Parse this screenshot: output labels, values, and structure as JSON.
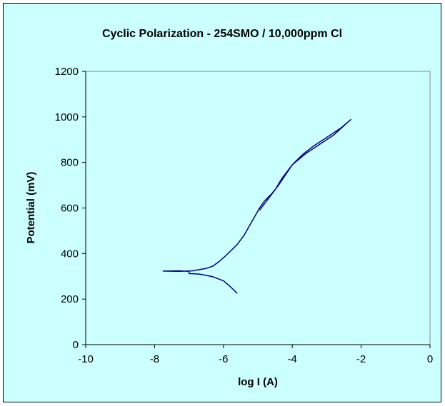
{
  "chart_data": {
    "type": "line",
    "title": "Cyclic Polarization - 254SMO / 10,000ppm Cl",
    "xlabel": "log I (A)",
    "ylabel": "Potential (mV)",
    "xlim": [
      -10,
      0
    ],
    "ylim": [
      0,
      1200
    ],
    "x_ticks": [
      -10,
      -8,
      -6,
      -4,
      -2,
      0
    ],
    "y_ticks": [
      0,
      200,
      400,
      600,
      800,
      1000,
      1200
    ],
    "grid": false,
    "legend": "none",
    "colors": {
      "background": "#ccffff",
      "line": "#000080",
      "plot_area": "#ccffff"
    },
    "series": [
      {
        "values_description_free": true,
        "points": [
          [
            -5.6,
            225
          ],
          [
            -5.7,
            240
          ],
          [
            -5.85,
            262
          ],
          [
            -6.0,
            280
          ],
          [
            -6.3,
            298
          ],
          [
            -6.7,
            310
          ],
          [
            -7.0,
            312
          ],
          [
            -7.0,
            322
          ],
          [
            -7.3,
            324
          ],
          [
            -7.75,
            323
          ],
          [
            -7.3,
            322
          ],
          [
            -6.9,
            324
          ],
          [
            -6.5,
            335
          ],
          [
            -6.3,
            345
          ],
          [
            -6.1,
            368
          ],
          [
            -5.9,
            395
          ],
          [
            -5.6,
            440
          ],
          [
            -5.4,
            480
          ],
          [
            -5.25,
            520
          ],
          [
            -5.1,
            560
          ],
          [
            -4.95,
            600
          ],
          [
            -4.8,
            632
          ],
          [
            -4.6,
            662
          ],
          [
            -4.4,
            700
          ],
          [
            -4.2,
            745
          ],
          [
            -4.0,
            790
          ],
          [
            -3.7,
            835
          ],
          [
            -3.4,
            870
          ],
          [
            -3.0,
            910
          ],
          [
            -2.6,
            950
          ],
          [
            -2.3,
            988
          ],
          [
            -2.4,
            975
          ],
          [
            -2.8,
            920
          ],
          [
            -3.2,
            880
          ],
          [
            -3.6,
            840
          ],
          [
            -4.0,
            790
          ],
          [
            -4.3,
            730
          ],
          [
            -4.5,
            680
          ],
          [
            -4.7,
            640
          ],
          [
            -4.85,
            610
          ],
          [
            -4.95,
            590
          ]
        ]
      }
    ]
  }
}
